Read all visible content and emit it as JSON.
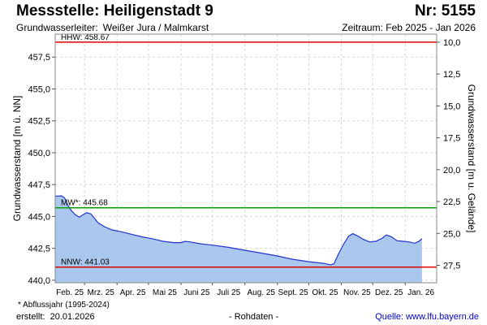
{
  "header": {
    "title": "Messstelle: Heiligenstadt 9",
    "number": "Nr: 5155",
    "aquifer_label": "Grundwasserleiter:",
    "aquifer_value": "Weißer Jura / Malmkarst",
    "period": "Zeitraum: Feb 2025 - Jan 2026"
  },
  "footer": {
    "footnote": "* Abflussjahr (1995-2024)",
    "created_label": "erstellt:",
    "created_date": "20.01.2026",
    "raw_data": "- Rohdaten -",
    "source": "Quelle: www.lfu.bayern.de"
  },
  "chart_data": {
    "type": "area",
    "ylabel": "Grundwasserstand [m ü. NN]",
    "ylabel_right": "Grundwasserstand [m u. Gelände]",
    "ylim": [
      439.8,
      459.3
    ],
    "yticks": [
      440.0,
      442.5,
      445.0,
      447.5,
      450.0,
      452.5,
      455.0,
      457.5
    ],
    "ytick_labels": [
      "440,0",
      "442,5",
      "445,0",
      "447,5",
      "450,0",
      "452,5",
      "455,0",
      "457,5"
    ],
    "right_ticks": [
      10.0,
      12.5,
      15.0,
      17.5,
      20.0,
      22.5,
      25.0,
      27.5
    ],
    "right_tick_labels": [
      "10,0",
      "12,5",
      "15,0",
      "17,5",
      "20,0",
      "22,5",
      "25,0",
      "27,5"
    ],
    "right_axis_offset": 468.67,
    "xlim": [
      "2025-02-01",
      "2026-01-31"
    ],
    "months": [
      {
        "label": "Feb. 25",
        "start": "2025-02-01",
        "end": "2025-03-01"
      },
      {
        "label": "Mrz. 25",
        "start": "2025-03-01",
        "end": "2025-04-01"
      },
      {
        "label": "Apr. 25",
        "start": "2025-04-01",
        "end": "2025-05-01"
      },
      {
        "label": "Mai 25",
        "start": "2025-05-01",
        "end": "2025-06-01"
      },
      {
        "label": "Juni 25",
        "start": "2025-06-01",
        "end": "2025-07-01"
      },
      {
        "label": "Juli 25",
        "start": "2025-07-01",
        "end": "2025-08-01"
      },
      {
        "label": "Aug. 25",
        "start": "2025-08-01",
        "end": "2025-09-01"
      },
      {
        "label": "Sept. 25",
        "start": "2025-09-01",
        "end": "2025-10-01"
      },
      {
        "label": "Okt. 25",
        "start": "2025-10-01",
        "end": "2025-11-01"
      },
      {
        "label": "Nov. 25",
        "start": "2025-11-01",
        "end": "2025-12-01"
      },
      {
        "label": "Dez. 25",
        "start": "2025-12-01",
        "end": "2026-01-01"
      },
      {
        "label": "Jan. 26",
        "start": "2026-01-01",
        "end": "2026-02-01"
      }
    ],
    "grid": true,
    "reference_lines": [
      {
        "label": "HHW: 458.67",
        "value": 458.67,
        "color": "#e00000"
      },
      {
        "label": "MW*: 445.68",
        "value": 445.68,
        "color": "#00a000"
      },
      {
        "label": "NNW: 441.03",
        "value": 441.03,
        "color": "#e00000"
      }
    ],
    "series": [
      {
        "line_color": "#2233cc",
        "fill_color": "#aac8ee",
        "points": [
          [
            "2025-02-01",
            446.6
          ],
          [
            "2025-02-04",
            446.6
          ],
          [
            "2025-02-07",
            446.62
          ],
          [
            "2025-02-10",
            446.45
          ],
          [
            "2025-02-13",
            445.9
          ],
          [
            "2025-02-16",
            445.5
          ],
          [
            "2025-02-20",
            445.15
          ],
          [
            "2025-02-24",
            444.95
          ],
          [
            "2025-02-28",
            445.15
          ],
          [
            "2025-03-03",
            445.3
          ],
          [
            "2025-03-07",
            445.2
          ],
          [
            "2025-03-10",
            444.9
          ],
          [
            "2025-03-14",
            444.5
          ],
          [
            "2025-03-20",
            444.2
          ],
          [
            "2025-03-27",
            443.95
          ],
          [
            "2025-04-05",
            443.8
          ],
          [
            "2025-04-15",
            443.6
          ],
          [
            "2025-04-25",
            443.4
          ],
          [
            "2025-05-05",
            443.25
          ],
          [
            "2025-05-15",
            443.05
          ],
          [
            "2025-05-25",
            442.95
          ],
          [
            "2025-06-01",
            442.95
          ],
          [
            "2025-06-05",
            443.05
          ],
          [
            "2025-06-10",
            443.0
          ],
          [
            "2025-06-20",
            442.85
          ],
          [
            "2025-07-01",
            442.75
          ],
          [
            "2025-07-15",
            442.6
          ],
          [
            "2025-08-01",
            442.35
          ],
          [
            "2025-08-15",
            442.15
          ],
          [
            "2025-09-01",
            441.9
          ],
          [
            "2025-09-15",
            441.65
          ],
          [
            "2025-10-01",
            441.45
          ],
          [
            "2025-10-15",
            441.32
          ],
          [
            "2025-10-22",
            441.2
          ],
          [
            "2025-10-25",
            441.3
          ],
          [
            "2025-10-29",
            442.0
          ],
          [
            "2025-11-03",
            442.8
          ],
          [
            "2025-11-08",
            443.45
          ],
          [
            "2025-11-12",
            443.65
          ],
          [
            "2025-11-17",
            443.45
          ],
          [
            "2025-11-22",
            443.2
          ],
          [
            "2025-11-28",
            443.0
          ],
          [
            "2025-12-04",
            443.05
          ],
          [
            "2025-12-10",
            443.3
          ],
          [
            "2025-12-14",
            443.55
          ],
          [
            "2025-12-19",
            443.4
          ],
          [
            "2025-12-24",
            443.1
          ],
          [
            "2025-12-30",
            443.05
          ],
          [
            "2026-01-05",
            443.0
          ],
          [
            "2026-01-10",
            442.9
          ],
          [
            "2026-01-14",
            443.05
          ],
          [
            "2026-01-17",
            443.25
          ]
        ]
      }
    ]
  }
}
